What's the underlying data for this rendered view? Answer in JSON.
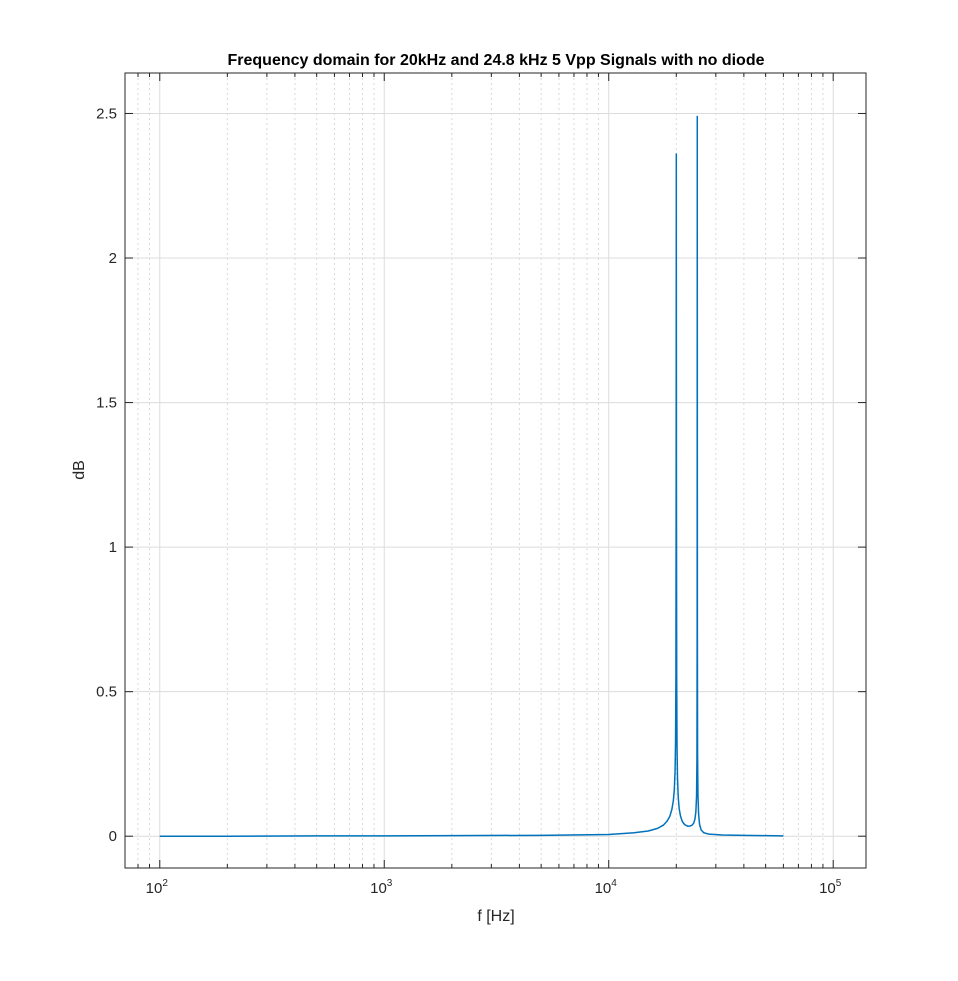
{
  "chart_data": {
    "type": "line",
    "title": "Frequency domain for 20kHz and 24.8 kHz 5 Vpp Signals with no diode",
    "xlabel": "f [Hz]",
    "ylabel": "dB",
    "xscale": "log",
    "xlim": [
      70,
      140000
    ],
    "ylim": [
      -0.11,
      2.64
    ],
    "xticks": [
      {
        "value": 100,
        "base": "10",
        "exp": "2"
      },
      {
        "value": 1000,
        "base": "10",
        "exp": "3"
      },
      {
        "value": 10000,
        "base": "10",
        "exp": "4"
      },
      {
        "value": 100000,
        "base": "10",
        "exp": "5"
      }
    ],
    "yticks": [
      {
        "value": 0,
        "label": "0"
      },
      {
        "value": 0.5,
        "label": "0.5"
      },
      {
        "value": 1,
        "label": "1"
      },
      {
        "value": 1.5,
        "label": "1.5"
      },
      {
        "value": 2,
        "label": "2"
      },
      {
        "value": 2.5,
        "label": "2.5"
      }
    ],
    "grid": true,
    "minor_grid": true,
    "line_color": "#0072BD",
    "series": [
      {
        "x": [
          100,
          200,
          500,
          1000,
          2000,
          5000,
          10000,
          13000,
          15000,
          16500,
          17500,
          18200,
          18700,
          19100,
          19400,
          19600,
          19750,
          19850,
          19920,
          19970,
          20000,
          20030,
          20080,
          20150,
          20250,
          20400,
          20600,
          20900,
          21300,
          21800,
          22400,
          23000,
          23500,
          23900,
          24200,
          24450,
          24620,
          24720,
          24770,
          24800,
          24830,
          24880,
          24980,
          25150,
          25400,
          25800,
          26500,
          28000,
          32000,
          40000,
          50000,
          60000
        ],
        "y": [
          0.0,
          0.0,
          0.001,
          0.001,
          0.002,
          0.003,
          0.006,
          0.012,
          0.018,
          0.027,
          0.038,
          0.052,
          0.068,
          0.092,
          0.122,
          0.162,
          0.225,
          0.33,
          0.55,
          1.2,
          2.36,
          1.25,
          0.56,
          0.31,
          0.2,
          0.135,
          0.095,
          0.068,
          0.05,
          0.04,
          0.035,
          0.035,
          0.038,
          0.045,
          0.058,
          0.085,
          0.14,
          0.27,
          0.7,
          2.49,
          0.72,
          0.28,
          0.14,
          0.075,
          0.04,
          0.022,
          0.012,
          0.007,
          0.004,
          0.003,
          0.002,
          0.001
        ]
      }
    ]
  }
}
